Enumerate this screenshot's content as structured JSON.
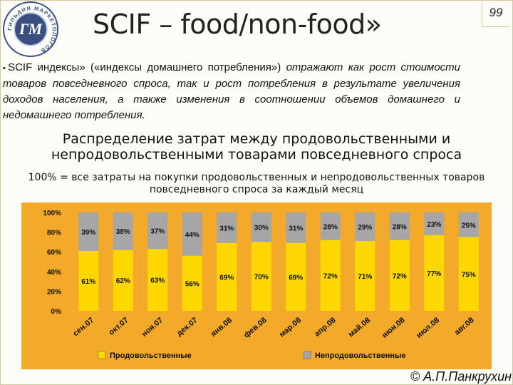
{
  "header": {
    "title": "SCIF – food/non-food»",
    "slide_number": "99"
  },
  "logo": {
    "ring_text": "ГИЛЬДИЯ МАРКЕТОЛОГОВ",
    "monogram": "ГМ"
  },
  "intro": {
    "bullet": "▪",
    "part1": "SCIF индексы» («индексы домашнего потребления») ",
    "part2": "отражают как рост стоимости товаров повседневного спроса, так и рост потребления в результате увеличения доходов населения, а также изменения в соотношении объемов домашнего и недомашнего потребления."
  },
  "subheading": "Распределение затрат между продовольственными и непродовольственными товарами повседневного спроса",
  "note": "100% = все затраты на покупки продовольственных и непродовольственных товаров повседневного спроса за каждый месяц",
  "copyright": "© А.П.Панкрухин",
  "colors": {
    "chart_background": "#F3A92A",
    "food": "#FFD700",
    "nonfood": "#A6A6A6"
  },
  "chart_data": {
    "type": "bar",
    "stacked": true,
    "categories": [
      "сен.07",
      "окт.07",
      "ноя.07",
      "дек.07",
      "янв.08",
      "фев.08",
      "мар.08",
      "апр.08",
      "май.08",
      "июн.08",
      "июл.08",
      "авг.08"
    ],
    "series": [
      {
        "name": "Продовольственные",
        "values": [
          61,
          62,
          63,
          56,
          69,
          70,
          69,
          72,
          71,
          72,
          77,
          75
        ],
        "labels": [
          "61%",
          "62%",
          "63%",
          "56%",
          "69%",
          "70%",
          "69%",
          "72%",
          "71%",
          "72%",
          "77%",
          "75%"
        ]
      },
      {
        "name": "Непродовольственные",
        "values": [
          39,
          38,
          37,
          44,
          31,
          30,
          31,
          28,
          29,
          28,
          23,
          25
        ],
        "labels": [
          "39%",
          "38%",
          "37%",
          "44%",
          "31%",
          "30%",
          "31%",
          "28%",
          "29%",
          "28%",
          "23%",
          "25%"
        ]
      }
    ],
    "yticks": [
      "100%",
      "80%",
      "60%",
      "40%",
      "20%",
      "0%"
    ],
    "ylim": [
      0,
      100
    ],
    "legend_position": "bottom",
    "grid": false
  }
}
